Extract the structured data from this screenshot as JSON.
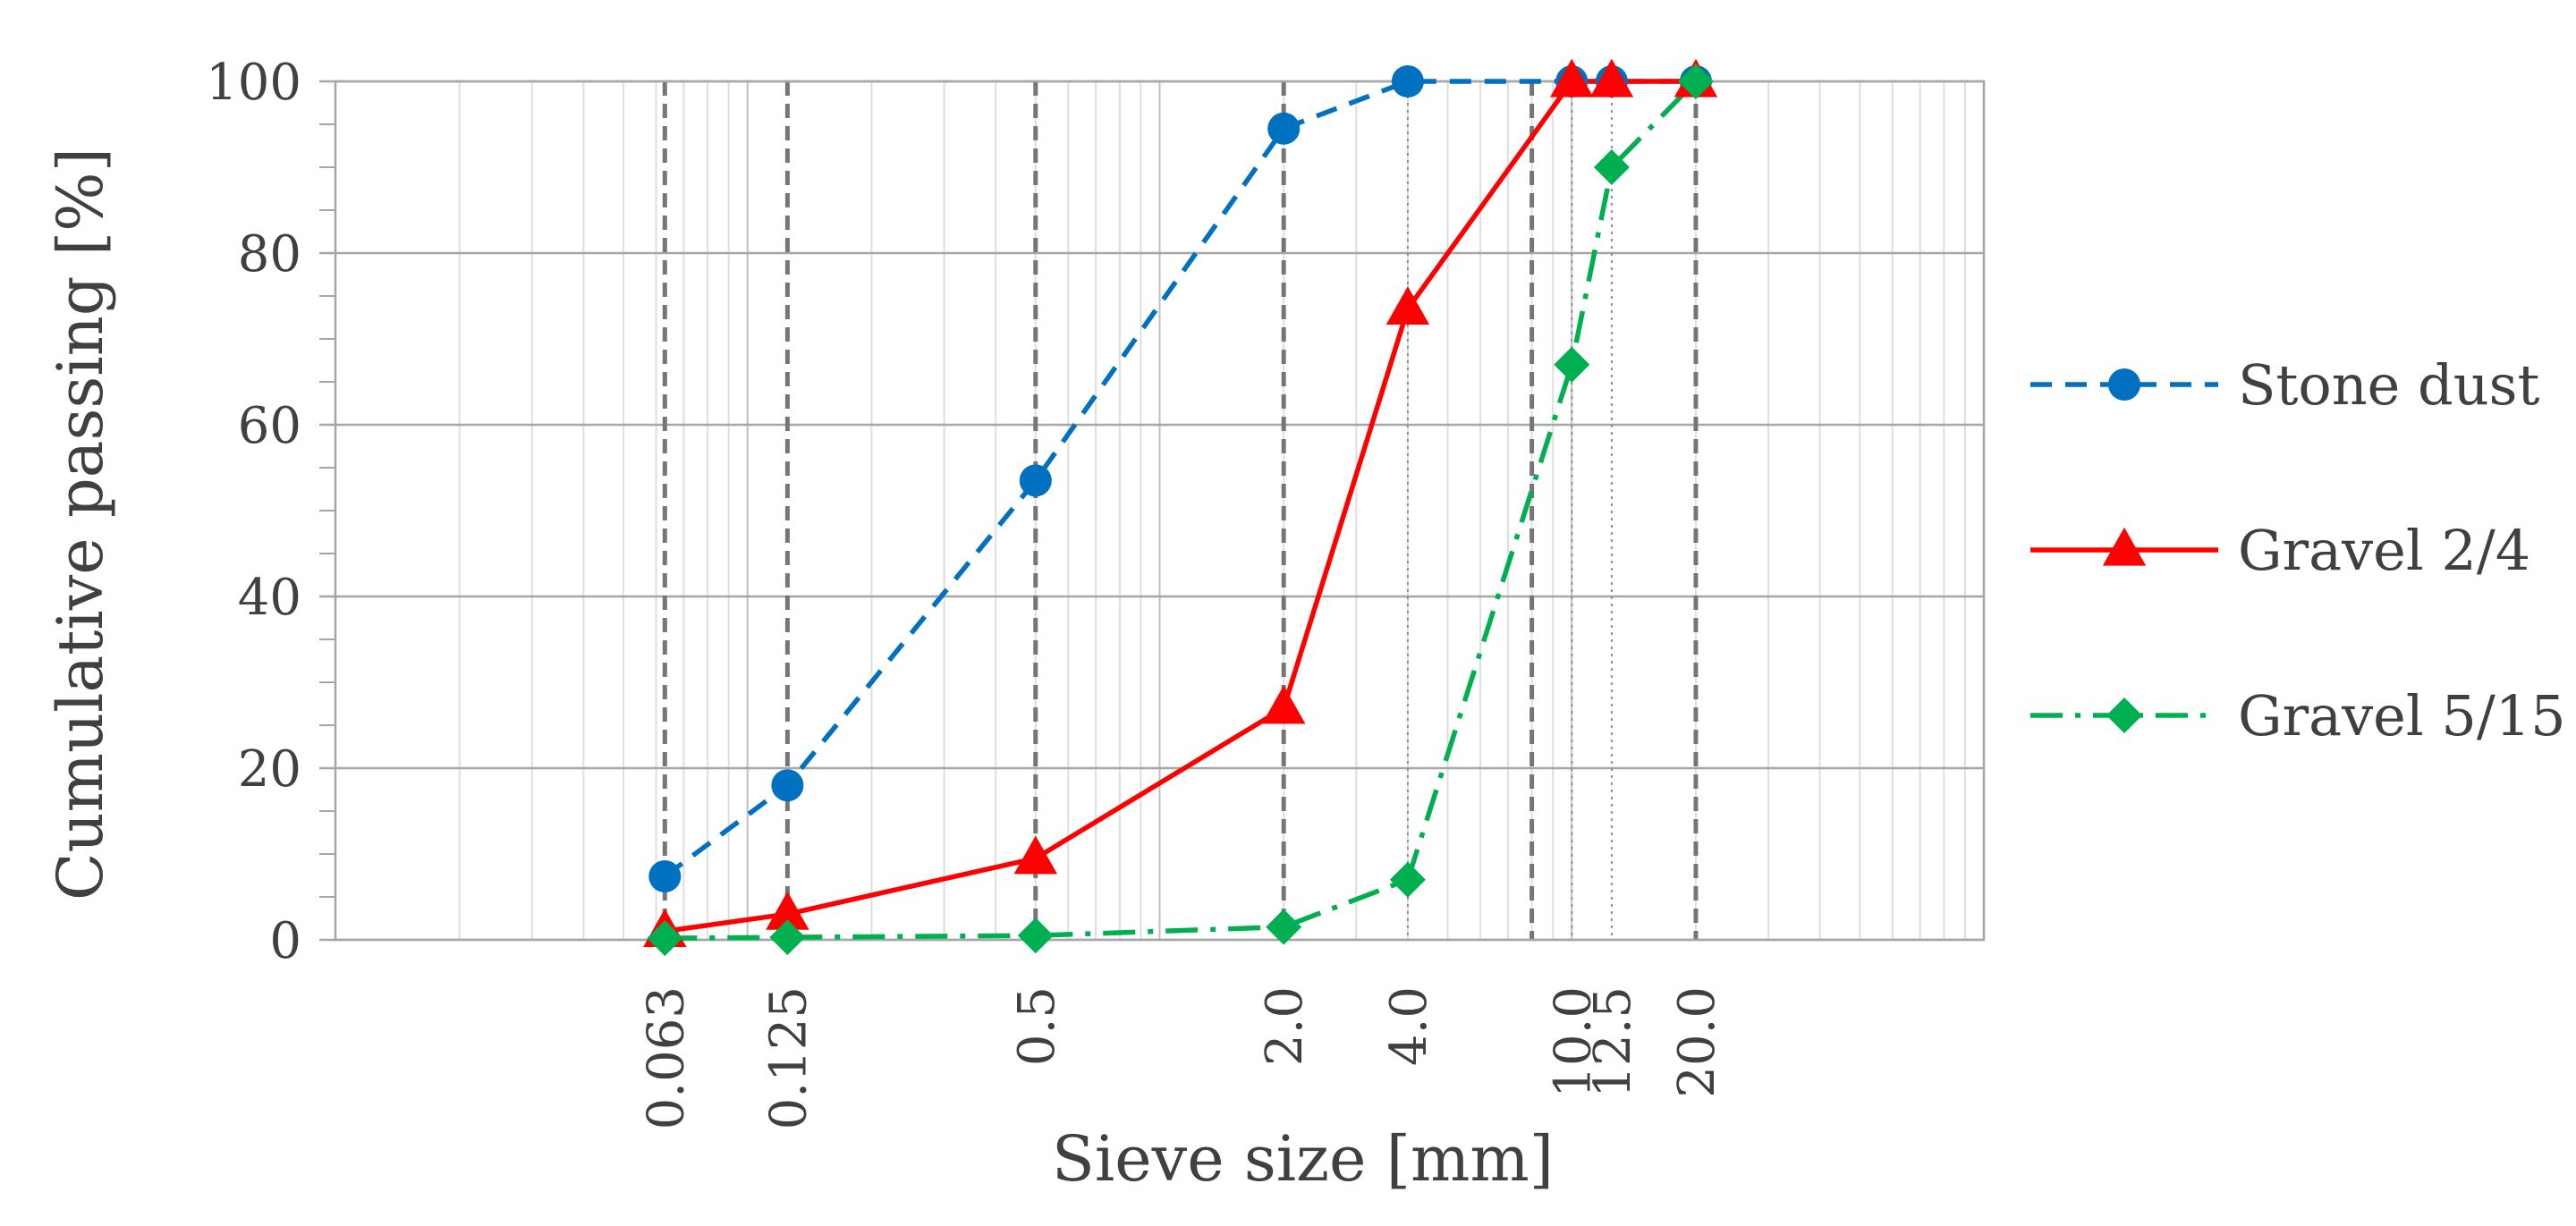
{
  "chart_data": {
    "type": "line",
    "xscale": "log",
    "xlabel": "Sieve size [mm]",
    "ylabel": "Cumulative passing [%]",
    "xlim": [
      0.01,
      100
    ],
    "ylim": [
      0,
      100
    ],
    "yticks": [
      0,
      20,
      40,
      60,
      80,
      100
    ],
    "ytick_labels": [
      "0",
      "20",
      "40",
      "60",
      "80",
      "100"
    ],
    "x_ticks": [
      0.063,
      0.125,
      0.5,
      2.0,
      4.0,
      10.0,
      12.5,
      20.0
    ],
    "x_tick_labels": [
      "0.063",
      "0.125",
      "0.5",
      "2.0",
      "4.0",
      "10.0",
      "12.5",
      "20.0"
    ],
    "dashed_guides": [
      0.063,
      0.125,
      0.5,
      2.0,
      8.0,
      20.0
    ],
    "dotted_guides": [
      4.0,
      10.0,
      12.5
    ],
    "grid": true,
    "legend_position": "right",
    "series": [
      {
        "name": "Stone dust",
        "color": "#0070C0",
        "line_style": "dashed",
        "marker": "circle",
        "x": [
          0.063,
          0.125,
          0.5,
          2.0,
          4.0,
          10.0,
          12.5,
          20.0
        ],
        "values": [
          7.4,
          18.0,
          53.5,
          94.5,
          100,
          100,
          100,
          100
        ]
      },
      {
        "name": "Gravel 2/4",
        "color": "#FF0000",
        "line_style": "solid",
        "marker": "triangle",
        "x": [
          0.063,
          0.125,
          0.5,
          2.0,
          4.0,
          10.0,
          12.5,
          20.0
        ],
        "values": [
          1.0,
          3.0,
          9.5,
          27.0,
          73.5,
          100,
          100,
          100
        ]
      },
      {
        "name": "Gravel 5/15",
        "color": "#00B050",
        "line_style": "dash-dot",
        "marker": "diamond",
        "x": [
          0.063,
          0.125,
          0.5,
          2.0,
          4.0,
          10.0,
          12.5,
          20.0
        ],
        "values": [
          0.2,
          0.3,
          0.5,
          1.5,
          7.0,
          67.0,
          90.0,
          100
        ]
      }
    ]
  }
}
